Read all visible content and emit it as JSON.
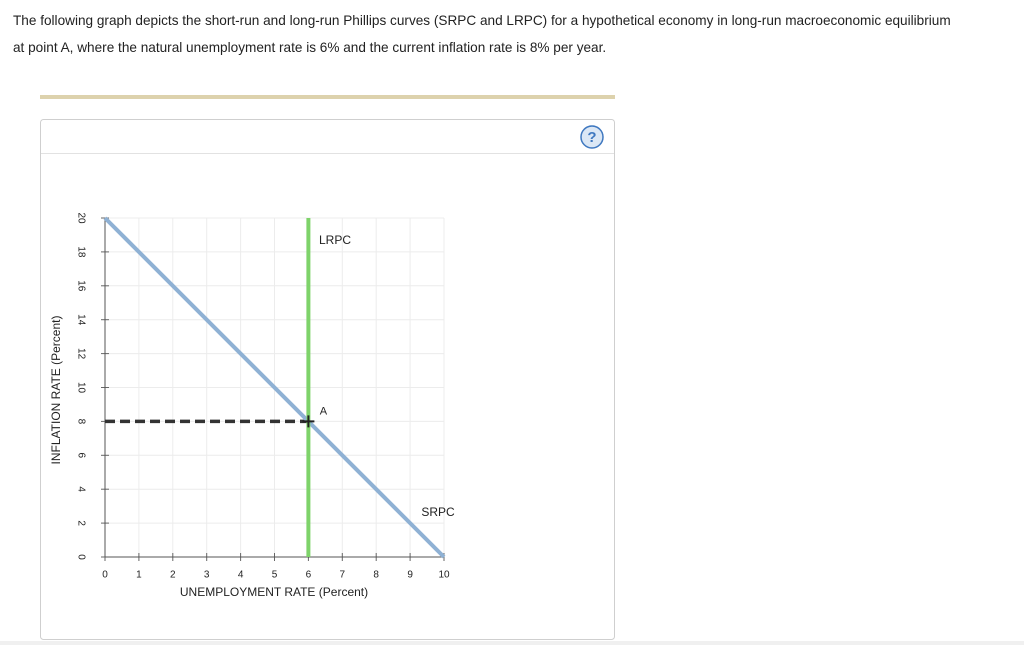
{
  "question": "The following graph depicts the short-run and long-run Phillips curves (SRPC and LRPC) for a hypothetical economy in long-run macroeconomic equilibrium at point A, where the natural unemployment rate is 6% and the current inflation rate is 8% per year.",
  "help_icon": "?",
  "chart_data": {
    "type": "line",
    "x_label": "UNEMPLOYMENT RATE (Percent)",
    "y_label": "INFLATION RATE (Percent)",
    "xlim": [
      0,
      10
    ],
    "ylim": [
      0,
      20
    ],
    "xticks": [
      0,
      1,
      2,
      3,
      4,
      5,
      6,
      7,
      8,
      9,
      10
    ],
    "yticks": [
      0,
      2,
      4,
      6,
      8,
      10,
      12,
      14,
      16,
      18,
      20
    ],
    "grid": true,
    "series": [
      {
        "name": "SRPC",
        "color": "#8fb1d4",
        "x": [
          0,
          10
        ],
        "values": [
          20,
          0
        ]
      },
      {
        "name": "LRPC",
        "color": "#7ed36a",
        "x": [
          6,
          6
        ],
        "values": [
          0,
          20
        ]
      }
    ],
    "guides": [
      {
        "color": "#333333",
        "x": [
          0,
          6
        ],
        "values": [
          8,
          8
        ]
      }
    ],
    "points": [
      {
        "label": "A",
        "x": 6,
        "y": 8
      }
    ]
  }
}
